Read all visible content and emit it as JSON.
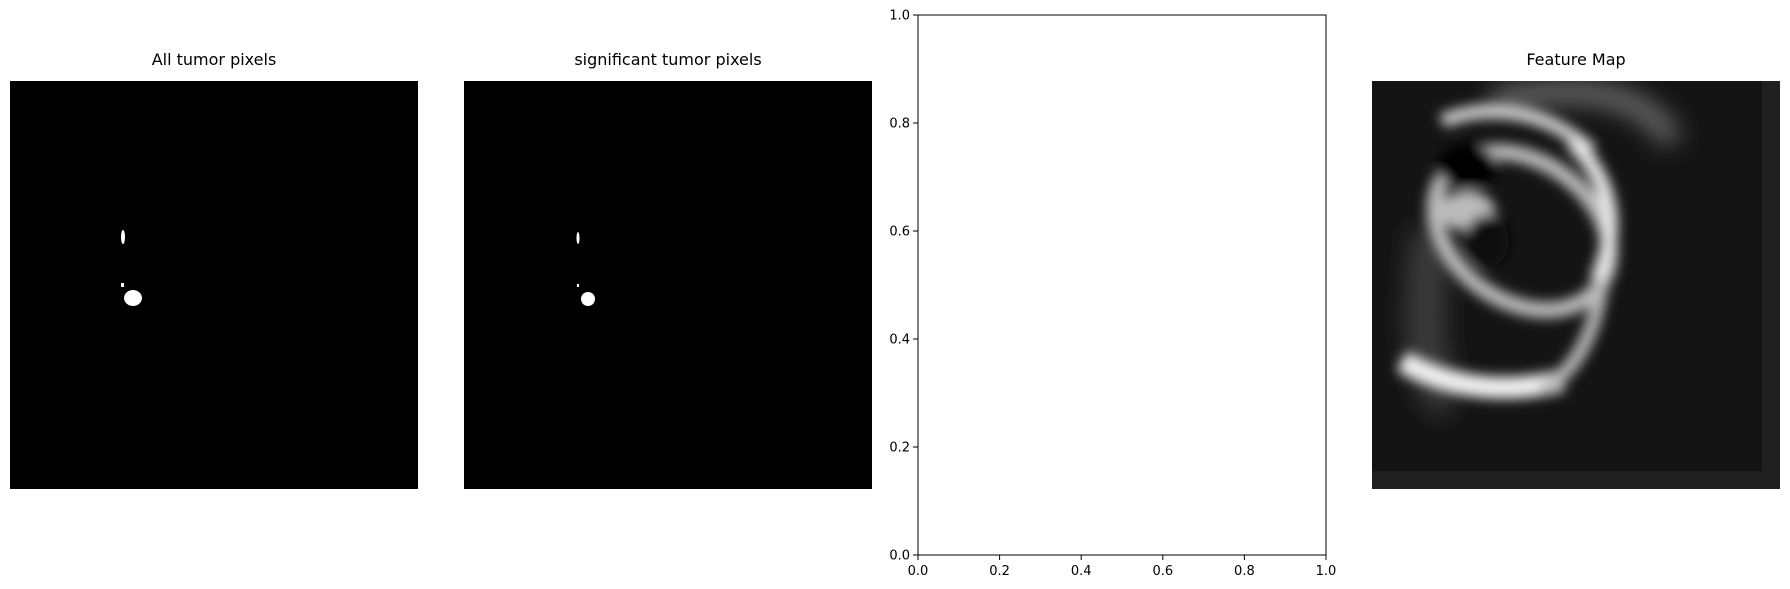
{
  "panels": [
    {
      "title": "All tumor pixels",
      "kind": "binary-mask-image"
    },
    {
      "title": "significant tumor pixels",
      "kind": "binary-mask-image"
    },
    {
      "title": "",
      "kind": "empty-axes"
    },
    {
      "title": "Feature Map",
      "kind": "grayscale-heatmap-image"
    }
  ],
  "chart_data": [
    {
      "type": "heatmap",
      "title": "All tumor pixels",
      "colormap": "gray",
      "axes": "off",
      "description_values": "binary mask, mostly 0 with small white regions of 1"
    },
    {
      "type": "heatmap",
      "title": "significant tumor pixels",
      "colormap": "gray",
      "axes": "off",
      "description_values": "binary mask, mostly 0 with small white regions of 1"
    },
    {
      "type": "scatter",
      "title": "",
      "xlabel": "",
      "ylabel": "",
      "xlim": [
        0.0,
        1.0
      ],
      "ylim": [
        0.0,
        1.0
      ],
      "xticks": [
        "0.0",
        "0.2",
        "0.4",
        "0.6",
        "0.8",
        "1.0"
      ],
      "yticks": [
        "0.0",
        "0.2",
        "0.4",
        "0.6",
        "0.8",
        "1.0"
      ],
      "series": []
    },
    {
      "type": "heatmap",
      "title": "Feature Map",
      "colormap": "gray",
      "axes": "off"
    }
  ],
  "colors": {
    "mask_background": "#000000",
    "mask_foreground": "#ffffff",
    "axes_frame": "#000000"
  }
}
